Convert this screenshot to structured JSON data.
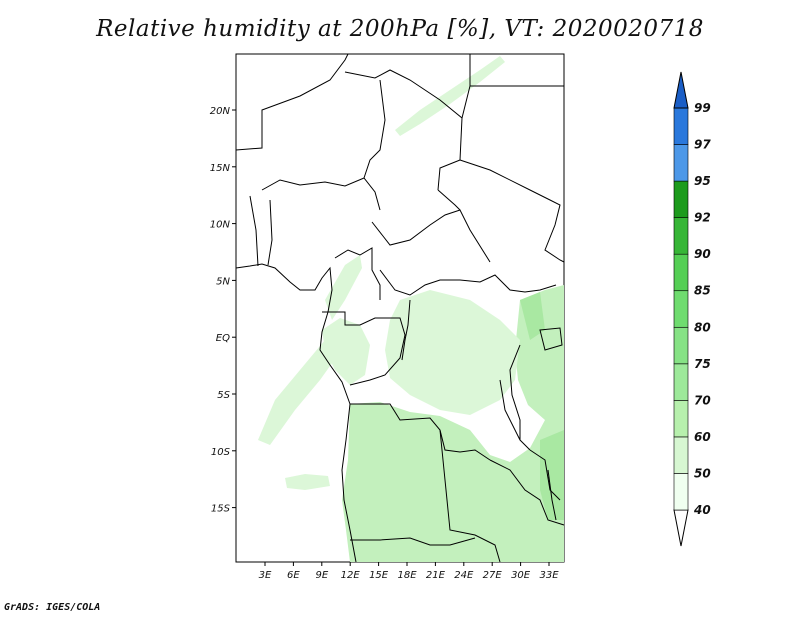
{
  "title": "Relative humidity at 200hPa [%], VT: 2020020718",
  "credit": "GrADS: IGES/COLA",
  "map": {
    "lon_ticks": [
      "3E",
      "6E",
      "9E",
      "12E",
      "15E",
      "18E",
      "21E",
      "24E",
      "27E",
      "30E",
      "33E"
    ],
    "lat_ticks": [
      "20N",
      "15N",
      "10N",
      "5N",
      "EQ",
      "5S",
      "10S",
      "15S"
    ],
    "land_color": "#ffffff",
    "border_color": "#000000"
  },
  "colorbar": {
    "levels": [
      "40",
      "50",
      "60",
      "70",
      "75",
      "80",
      "85",
      "90",
      "92",
      "95",
      "97",
      "99"
    ],
    "colors": [
      "#f0fff0",
      "#d7f7d2",
      "#b7f0ad",
      "#9de99a",
      "#86e285",
      "#6fdc6f",
      "#55cf55",
      "#37b637",
      "#1d9b1d",
      "#4d98e8",
      "#2a78dc",
      "#1a5ec6"
    ]
  },
  "shading": {
    "light": "#dcf7d8",
    "medium": "#c3f0bd",
    "strong": "#a9e8a2"
  }
}
